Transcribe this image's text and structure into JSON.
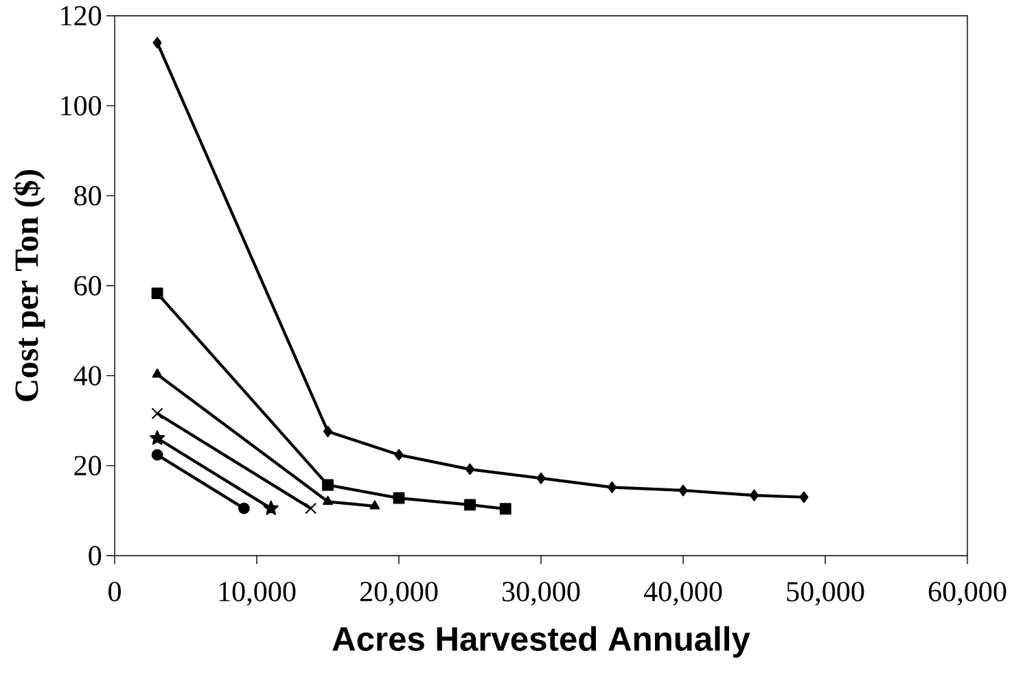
{
  "chart_data": {
    "type": "line",
    "xlabel": "Acres Harvested  Annually",
    "ylabel": "Cost per Ton ($)",
    "xlim": [
      0,
      60000
    ],
    "ylim": [
      0,
      120
    ],
    "xticks": [
      0,
      {
        "value": 10000,
        "label": "10,000"
      },
      {
        "value": 20000,
        "label": "20,000"
      },
      {
        "value": 30000,
        "label": "30,000"
      },
      {
        "value": 40000,
        "label": "40,000"
      },
      {
        "value": 50000,
        "label": "50,000"
      },
      {
        "value": 60000,
        "label": "60,000"
      }
    ],
    "yticks": [
      0,
      20,
      40,
      60,
      80,
      100,
      120
    ],
    "grid": false,
    "line_style": "solid",
    "series": [
      {
        "color": "#000000",
        "marker": "diamond",
        "x": [
          3000,
          15000,
          20000,
          25000,
          30000,
          35000,
          40000,
          45000,
          48500
        ],
        "values": [
          114,
          27.6,
          22.4,
          19.2,
          17.2,
          15.2,
          14.5,
          13.4,
          13.0
        ]
      },
      {
        "color": "#000000",
        "marker": "square",
        "x": [
          3000,
          15000,
          20000,
          25000,
          27500
        ],
        "values": [
          58.3,
          15.7,
          12.8,
          11.3,
          10.4
        ]
      },
      {
        "color": "#000000",
        "marker": "triangle",
        "x": [
          3000,
          15000,
          18300
        ],
        "values": [
          40.3,
          12.0,
          11.0
        ]
      },
      {
        "color": "#000000",
        "marker": "cross",
        "x": [
          3000,
          13800
        ],
        "values": [
          31.6,
          10.5
        ]
      },
      {
        "color": "#000000",
        "marker": "star",
        "x": [
          3000,
          11000
        ],
        "values": [
          26.1,
          10.5
        ]
      },
      {
        "color": "#000000",
        "marker": "circle",
        "x": [
          3000,
          9100
        ],
        "values": [
          22.4,
          10.5
        ]
      }
    ]
  }
}
